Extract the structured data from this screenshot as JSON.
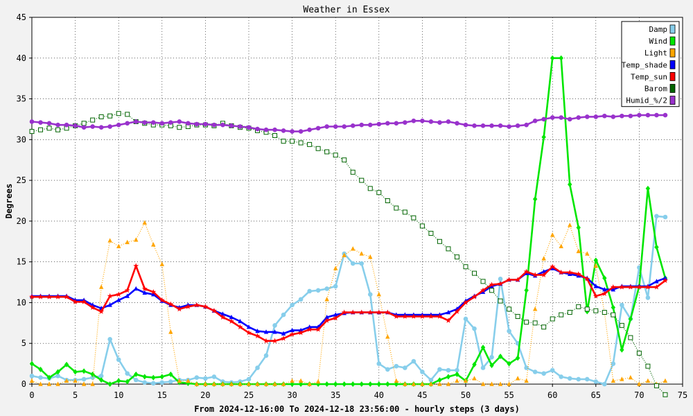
{
  "chart_data": {
    "type": "line",
    "title": "Weather in Essex",
    "xlabel": "From 2024-12-16:00 To 2024-12-18 23:56:00 - hourly steps (3 days)",
    "ylabel": "Degrees",
    "xlim": [
      0,
      75
    ],
    "ylim": [
      0,
      45
    ],
    "xticks": [
      "0",
      "5",
      "10",
      "15",
      "20",
      "25",
      "30",
      "35",
      "40",
      "45",
      "50",
      "55",
      "60",
      "65",
      "70",
      "75"
    ],
    "yticks": [
      "0",
      "5",
      "10",
      "15",
      "20",
      "25",
      "30",
      "35",
      "40",
      "45"
    ],
    "grid": true,
    "legend_position": "top-right",
    "series": [
      {
        "name": "Damp",
        "color": "#87ceeb",
        "marker": "circle",
        "style": "solid",
        "values": [
          1.0,
          0.8,
          0.7,
          1.0,
          0.5,
          0.5,
          0.6,
          0.8,
          1.0,
          5.5,
          3.0,
          1.3,
          0.5,
          0.2,
          0.1,
          0.2,
          0.3,
          0.5,
          0.5,
          0.8,
          0.7,
          0.9,
          0.3,
          0.2,
          0.3,
          0.6,
          2.0,
          3.5,
          7.2,
          8.5,
          9.7,
          10.4,
          11.4,
          11.5,
          11.7,
          12.0,
          16.0,
          14.8,
          14.8,
          11.0,
          2.5,
          1.8,
          2.2,
          2.0,
          2.8,
          1.5,
          0.5,
          1.8,
          1.7,
          1.7,
          8.0,
          6.8,
          2.0,
          3.3,
          12.9,
          6.5,
          5.0,
          2.0,
          1.5,
          1.3,
          1.7,
          0.9,
          0.7,
          0.6,
          0.6,
          0.3,
          0.0,
          2.5,
          9.7,
          8.0,
          14.3,
          10.6,
          20.6,
          20.5
        ]
      },
      {
        "name": "Wind",
        "color": "#00e600",
        "marker": "diamond",
        "style": "solid",
        "values": [
          2.5,
          1.8,
          0.8,
          1.5,
          2.4,
          1.5,
          1.6,
          1.2,
          0.5,
          0.0,
          0.4,
          0.3,
          1.2,
          0.9,
          0.8,
          0.9,
          1.2,
          0.2,
          0.1,
          0.0,
          0.0,
          0.0,
          0.0,
          0.0,
          0.0,
          0.0,
          0.0,
          0.0,
          0.0,
          0.0,
          0.0,
          0.0,
          0.0,
          0.0,
          0.0,
          0.0,
          0.0,
          0.0,
          0.0,
          0.0,
          0.0,
          0.0,
          0.0,
          0.0,
          0.0,
          0.0,
          0.0,
          0.5,
          0.9,
          1.2,
          0.4,
          2.4,
          4.5,
          2.3,
          3.4,
          2.5,
          3.2,
          11.5,
          22.7,
          30.3,
          40.0,
          40.0,
          24.5,
          19.2,
          8.9,
          15.2,
          13.0,
          9.4,
          4.2,
          8.0,
          12.0,
          24.0,
          16.8,
          13.0
        ]
      },
      {
        "name": "Light",
        "color": "#ffa500",
        "marker": "triangle",
        "style": "dotted",
        "values": [
          0.4,
          0.0,
          0.0,
          0.0,
          0.4,
          0.4,
          0.0,
          0.0,
          11.9,
          17.6,
          16.9,
          17.4,
          17.7,
          19.8,
          17.1,
          14.7,
          6.4,
          0.4,
          0.4,
          0.0,
          0.0,
          0.0,
          0.0,
          0.0,
          0.0,
          0.0,
          0.0,
          0.0,
          0.0,
          0.0,
          0.4,
          0.4,
          0.0,
          0.3,
          10.4,
          14.2,
          15.8,
          16.6,
          16.0,
          15.6,
          11.0,
          5.8,
          0.4,
          0.0,
          0.0,
          0.0,
          0.0,
          0.0,
          0.0,
          0.4,
          0.4,
          0.7,
          0.0,
          0.0,
          0.0,
          0.0,
          0.7,
          0.4,
          9.2,
          15.4,
          18.3,
          16.9,
          19.5,
          16.3,
          16.0,
          14.5,
          8.8,
          0.4,
          0.6,
          0.8,
          0.0,
          0.4,
          0.0,
          0.4
        ]
      },
      {
        "name": "Temp_shade",
        "color": "#0000ff",
        "marker": "triangle",
        "style": "solid",
        "values": [
          10.8,
          10.8,
          10.8,
          10.8,
          10.8,
          10.3,
          10.3,
          9.7,
          9.3,
          9.7,
          10.3,
          10.8,
          11.7,
          11.2,
          11.0,
          10.2,
          9.7,
          9.4,
          9.7,
          9.7,
          9.5,
          9.0,
          8.6,
          8.2,
          7.7,
          7.0,
          6.5,
          6.4,
          6.4,
          6.2,
          6.6,
          6.6,
          7.0,
          7.0,
          8.2,
          8.5,
          8.7,
          8.8,
          8.8,
          8.8,
          8.8,
          8.8,
          8.5,
          8.5,
          8.5,
          8.5,
          8.5,
          8.5,
          8.8,
          9.2,
          10.2,
          10.8,
          11.3,
          12.0,
          12.3,
          12.8,
          12.8,
          13.6,
          13.3,
          13.8,
          14.2,
          13.7,
          13.5,
          13.3,
          13.0,
          12.0,
          11.6,
          11.6,
          12.0,
          12.0,
          12.0,
          12.0,
          12.6,
          13.0
        ]
      },
      {
        "name": "Temp_sun",
        "color": "#ff0000",
        "marker": "star",
        "style": "solid",
        "values": [
          10.7,
          10.7,
          10.7,
          10.7,
          10.7,
          10.1,
          10.1,
          9.4,
          8.9,
          10.8,
          11.0,
          11.5,
          14.5,
          11.7,
          11.3,
          10.3,
          9.8,
          9.2,
          9.5,
          9.7,
          9.5,
          9.0,
          8.2,
          7.7,
          7.0,
          6.3,
          5.9,
          5.3,
          5.3,
          5.6,
          6.1,
          6.3,
          6.7,
          6.7,
          7.8,
          8.1,
          8.8,
          8.8,
          8.8,
          8.8,
          8.8,
          8.8,
          8.3,
          8.3,
          8.3,
          8.3,
          8.3,
          8.3,
          7.8,
          8.9,
          10.0,
          10.7,
          11.5,
          12.2,
          12.3,
          12.8,
          12.8,
          13.8,
          13.4,
          13.4,
          14.4,
          13.7,
          13.7,
          13.5,
          12.9,
          10.8,
          11.1,
          11.9,
          11.9,
          11.9,
          11.9,
          11.9,
          11.9,
          12.7
        ]
      },
      {
        "name": "Barom",
        "color": "#006400",
        "marker": "square",
        "style": "dotted",
        "values": [
          31.0,
          31.2,
          31.4,
          31.2,
          31.4,
          31.7,
          32.0,
          32.4,
          32.8,
          32.9,
          33.2,
          33.1,
          32.2,
          32.0,
          31.8,
          31.8,
          31.7,
          31.5,
          31.6,
          31.8,
          31.8,
          31.7,
          32.0,
          31.7,
          31.5,
          31.4,
          31.1,
          30.9,
          30.5,
          29.8,
          29.8,
          29.6,
          29.4,
          28.9,
          28.5,
          28.1,
          27.5,
          26.0,
          25.0,
          24.0,
          23.5,
          22.5,
          21.6,
          21.1,
          20.4,
          19.4,
          18.5,
          17.5,
          16.6,
          15.6,
          14.4,
          13.6,
          12.6,
          11.5,
          10.2,
          9.2,
          8.3,
          7.6,
          7.5,
          7.0,
          8.0,
          8.5,
          8.8,
          9.5,
          9.2,
          9.0,
          8.8,
          8.5,
          7.2,
          5.7,
          3.8,
          2.2,
          -0.2,
          -1.3
        ]
      },
      {
        "name": "Humid_%/2",
        "color": "#9932cc",
        "marker": "circle",
        "style": "solid",
        "values": [
          32.2,
          32.1,
          32.0,
          31.8,
          31.8,
          31.7,
          31.5,
          31.6,
          31.5,
          31.6,
          31.8,
          32.0,
          32.2,
          32.1,
          32.1,
          32.0,
          32.1,
          32.2,
          32.0,
          31.9,
          31.9,
          31.8,
          31.8,
          31.7,
          31.6,
          31.5,
          31.3,
          31.2,
          31.2,
          31.1,
          31.0,
          31.0,
          31.2,
          31.4,
          31.6,
          31.6,
          31.6,
          31.7,
          31.8,
          31.8,
          31.9,
          32.0,
          32.0,
          32.1,
          32.3,
          32.3,
          32.2,
          32.1,
          32.2,
          32.0,
          31.8,
          31.7,
          31.7,
          31.7,
          31.7,
          31.6,
          31.7,
          31.8,
          32.3,
          32.5,
          32.7,
          32.7,
          32.5,
          32.7,
          32.8,
          32.8,
          32.9,
          32.8,
          32.9,
          32.9,
          33.0,
          33.0,
          33.0,
          33.0
        ]
      }
    ]
  }
}
